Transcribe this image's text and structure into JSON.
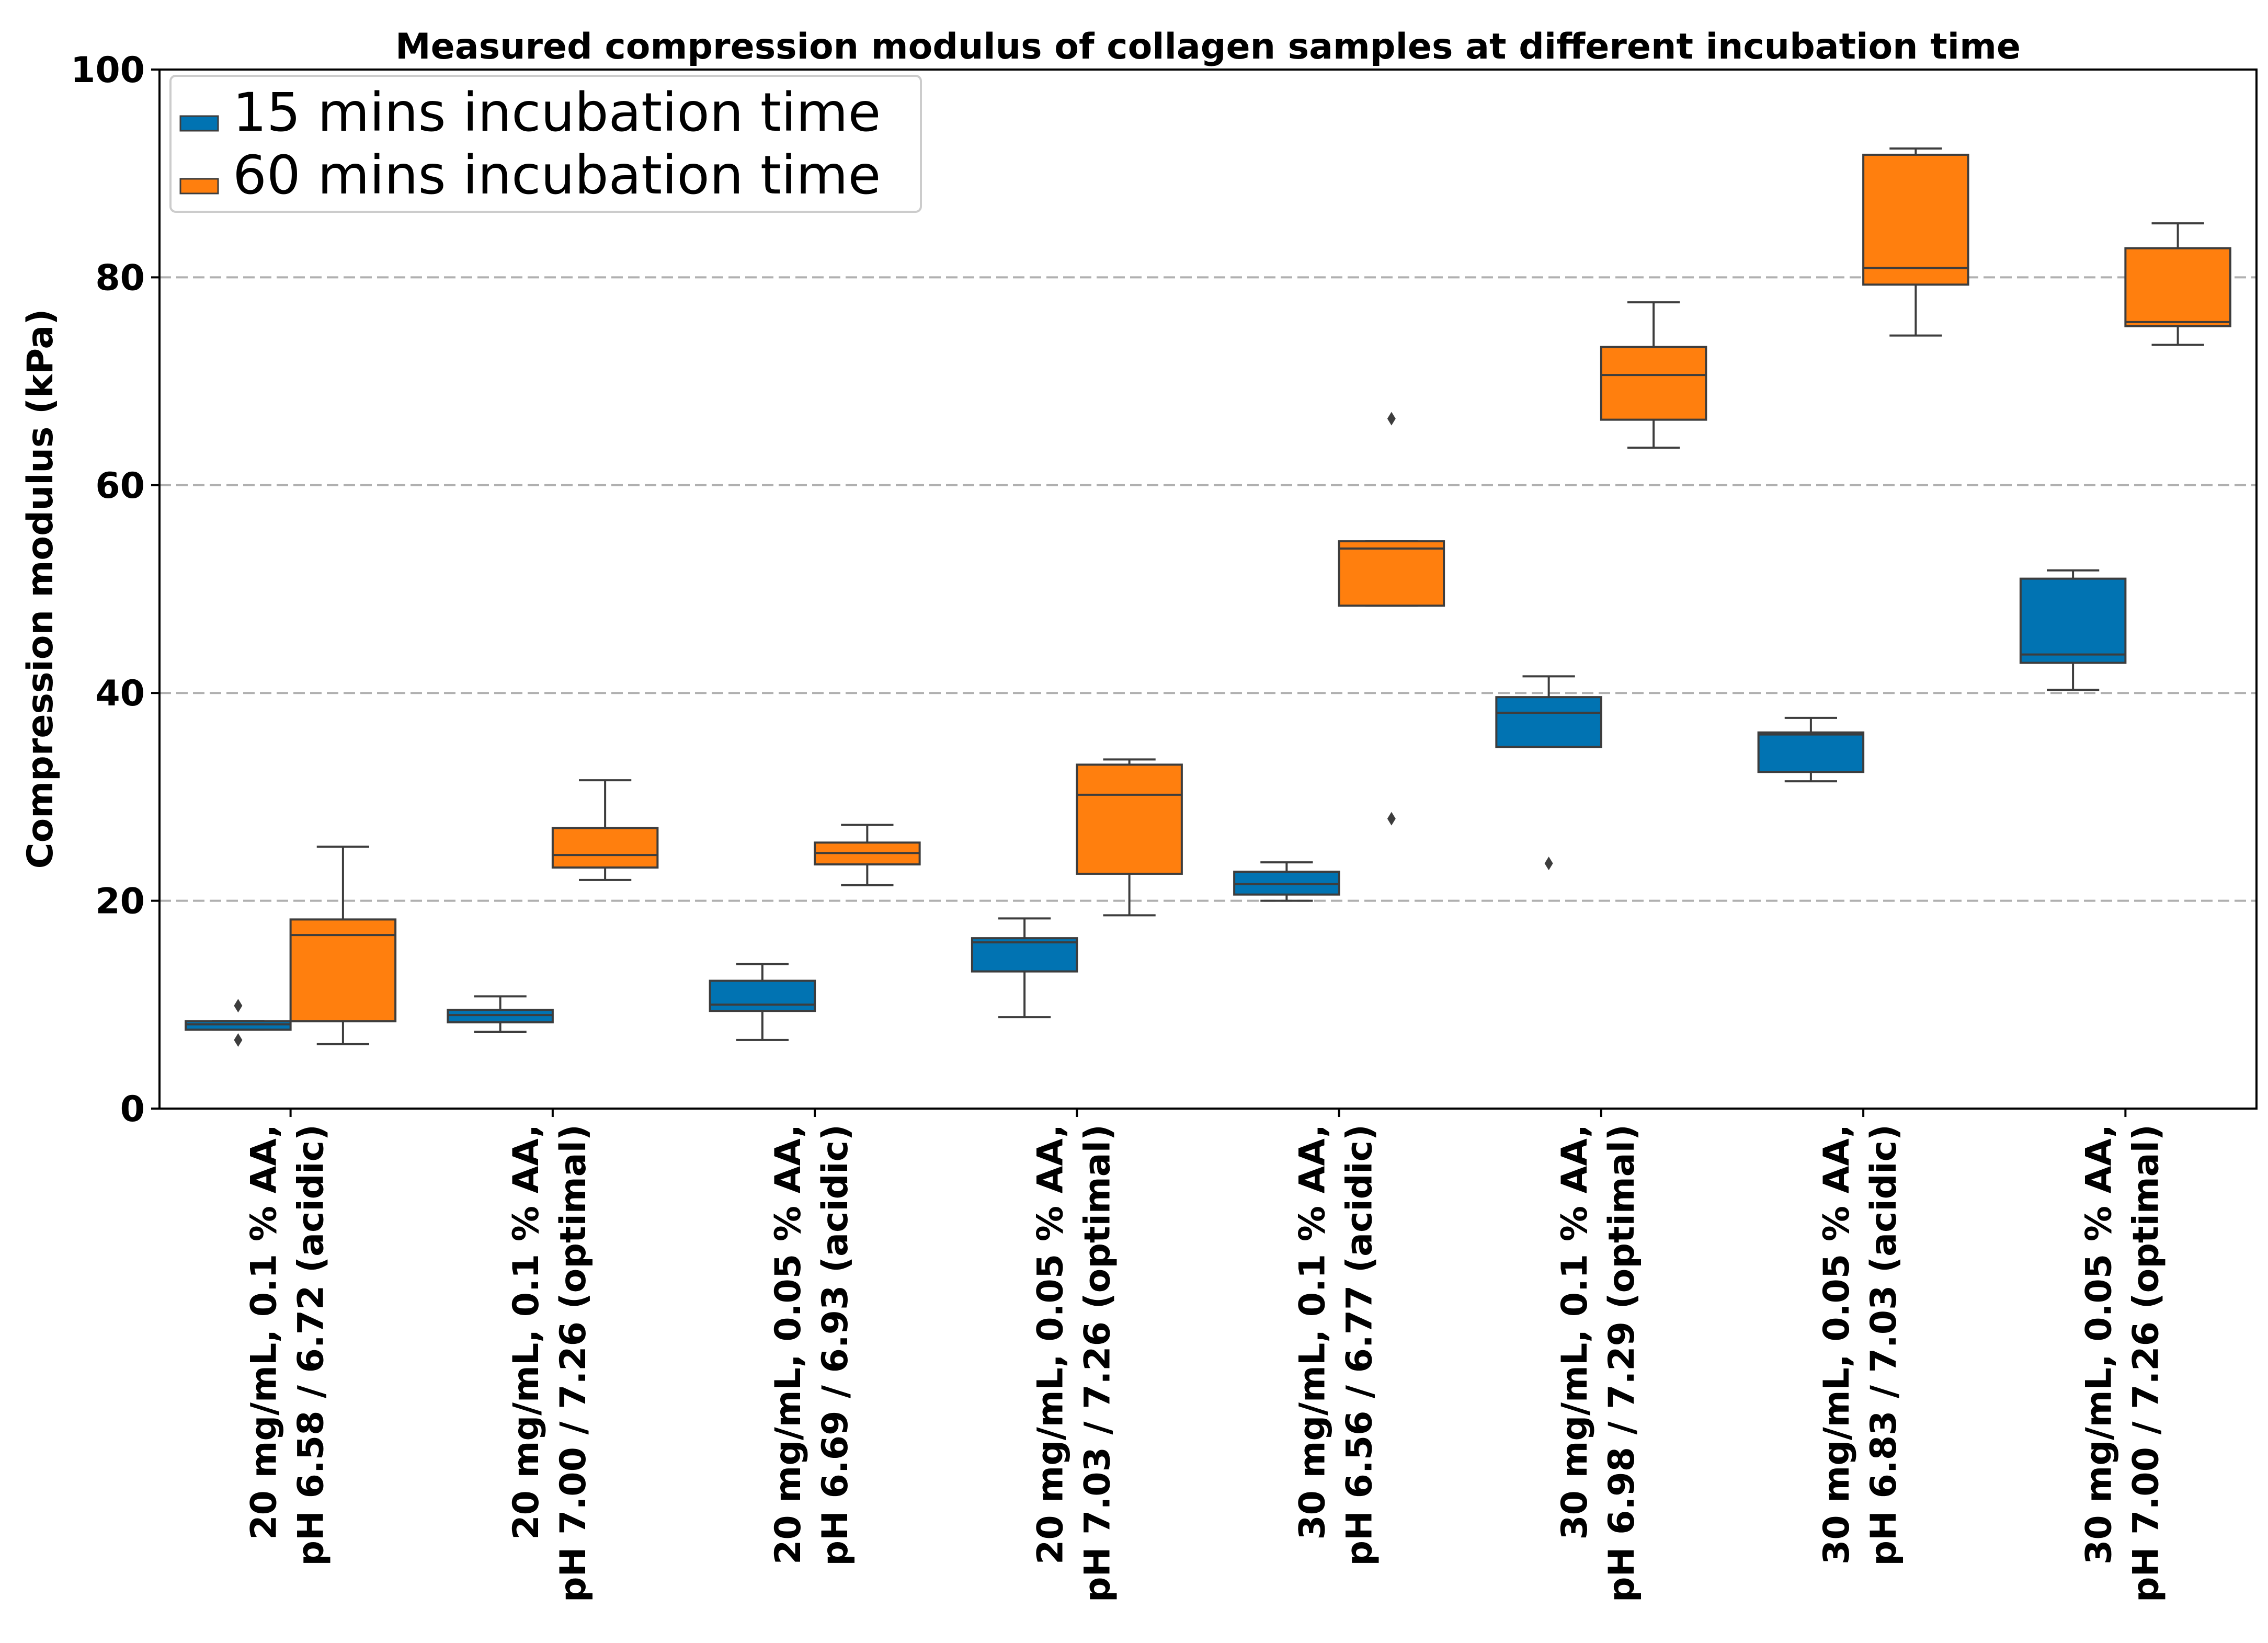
{
  "chart_data": {
    "type": "box",
    "title": "Measured compression modulus of collagen samples at different incubation time",
    "xlabel": "",
    "ylabel": "Compression modulus (kPa)",
    "ylim": [
      0,
      100
    ],
    "yticks": [
      0,
      20,
      40,
      60,
      80,
      100
    ],
    "grid": "horizontal dashed at 20, 40, 60, 80",
    "legend_position": "upper-left",
    "categories": [
      [
        "20 mg/mL, 0.1 % AA,",
        "pH 6.58 / 6.72 (acidic)"
      ],
      [
        "20 mg/mL, 0.1 % AA,",
        "pH 7.00 / 7.26 (optimal)"
      ],
      [
        "20 mg/mL, 0.05 % AA,",
        "pH 6.69 / 6.93 (acidic)"
      ],
      [
        "20 mg/mL, 0.05 % AA,",
        "pH 7.03 / 7.26 (optimal)"
      ],
      [
        "30 mg/mL, 0.1 % AA,",
        "pH 6.56 / 6.77 (acidic)"
      ],
      [
        "30 mg/mL, 0.1 % AA,",
        "pH 6.98 / 7.29 (optimal)"
      ],
      [
        "30 mg/mL, 0.05 % AA,",
        "pH 6.83 / 7.03 (acidic)"
      ],
      [
        "30 mg/mL, 0.05 % AA,",
        "pH 7.00 / 7.26 (optimal)"
      ]
    ],
    "series": [
      {
        "name": "15 mins incubation time",
        "color": "#0173b2",
        "boxes": [
          {
            "whislo": 7.6,
            "q1": 7.6,
            "med": 8.1,
            "q3": 8.4,
            "whishi": 8.4,
            "fliers": [
              9.9,
              6.6
            ]
          },
          {
            "whislo": 7.4,
            "q1": 8.3,
            "med": 9.0,
            "q3": 9.5,
            "whishi": 10.8,
            "fliers": []
          },
          {
            "whislo": 6.6,
            "q1": 9.4,
            "med": 10.0,
            "q3": 12.3,
            "whishi": 13.9,
            "fliers": []
          },
          {
            "whislo": 8.8,
            "q1": 13.2,
            "med": 16.0,
            "q3": 16.4,
            "whishi": 18.3,
            "fliers": []
          },
          {
            "whislo": 20.0,
            "q1": 20.6,
            "med": 21.6,
            "q3": 22.8,
            "whishi": 23.7,
            "fliers": []
          },
          {
            "whislo": 34.8,
            "q1": 34.8,
            "med": 38.1,
            "q3": 39.6,
            "whishi": 41.6,
            "fliers": [
              23.6
            ]
          },
          {
            "whislo": 31.5,
            "q1": 32.4,
            "med": 36.0,
            "q3": 36.2,
            "whishi": 37.6,
            "fliers": []
          },
          {
            "whislo": 40.3,
            "q1": 42.9,
            "med": 43.7,
            "q3": 51.0,
            "whishi": 51.8,
            "fliers": []
          }
        ]
      },
      {
        "name": "60 mins incubation time",
        "color": "#ff7f0e",
        "boxes": [
          {
            "whislo": 6.2,
            "q1": 8.4,
            "med": 16.7,
            "q3": 18.2,
            "whishi": 25.2,
            "fliers": []
          },
          {
            "whislo": 22.0,
            "q1": 23.2,
            "med": 24.4,
            "q3": 27.0,
            "whishi": 31.6,
            "fliers": []
          },
          {
            "whislo": 21.5,
            "q1": 23.5,
            "med": 24.6,
            "q3": 25.6,
            "whishi": 27.3,
            "fliers": []
          },
          {
            "whislo": 18.6,
            "q1": 22.6,
            "med": 30.2,
            "q3": 33.1,
            "whishi": 33.6,
            "fliers": []
          },
          {
            "whislo": 48.4,
            "q1": 48.4,
            "med": 53.9,
            "q3": 54.6,
            "whishi": 54.6,
            "fliers": [
              66.4,
              27.9
            ]
          },
          {
            "whislo": 63.6,
            "q1": 66.3,
            "med": 70.6,
            "q3": 73.3,
            "whishi": 77.6,
            "fliers": []
          },
          {
            "whislo": 74.4,
            "q1": 79.3,
            "med": 80.9,
            "q3": 91.8,
            "whishi": 92.4,
            "fliers": []
          },
          {
            "whislo": 73.5,
            "q1": 75.3,
            "med": 75.7,
            "q3": 82.8,
            "whishi": 85.2,
            "fliers": []
          }
        ]
      }
    ]
  },
  "colors": {
    "box_edge": "#3d3d3d",
    "grid": "#b0b0b0",
    "axis": "#000000"
  }
}
